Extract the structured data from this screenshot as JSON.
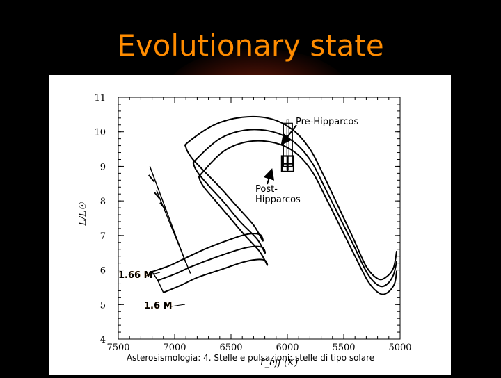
{
  "slide": {
    "title": "Evolutionary state",
    "footer": "Asterosismologia: 4. Stelle e pulsazioni: stelle di tipo solare"
  },
  "colors": {
    "title": "#ff8c00",
    "background": "#000000",
    "panel": "#ffffff"
  },
  "chart_data": {
    "type": "line",
    "title": "",
    "xlabel": "T_eff (K)",
    "ylabel": "L/L☉",
    "xlim": [
      7500,
      5000
    ],
    "x_reversed": true,
    "ylim": [
      4,
      11
    ],
    "x_ticks": [
      "7500",
      "7000",
      "6500",
      "6000",
      "5500",
      "5000"
    ],
    "y_ticks": [
      "4",
      "5",
      "6",
      "7",
      "8",
      "9",
      "10",
      "11"
    ],
    "series": [
      {
        "name": "1.66 M",
        "x": [
          7200,
          7050,
          6900,
          6700,
          6450,
          6330,
          6240,
          6220,
          6300,
          6450,
          6600,
          6750,
          6850,
          6900,
          6880,
          6650,
          6400,
          6150,
          5950,
          5800,
          5680,
          5550,
          5420,
          5300,
          5200,
          5130,
          5060,
          5030
        ],
        "y": [
          5.95,
          6.12,
          6.35,
          6.65,
          6.95,
          7.05,
          7.02,
          6.85,
          7.3,
          7.85,
          8.4,
          8.9,
          9.25,
          9.55,
          9.7,
          10.2,
          10.42,
          10.38,
          10.05,
          9.5,
          8.75,
          7.85,
          6.95,
          6.1,
          5.75,
          5.78,
          6.05,
          6.55
        ]
      },
      {
        "name": "",
        "x": [
          7150,
          7000,
          6850,
          6650,
          6420,
          6300,
          6220,
          6200,
          6270,
          6420,
          6560,
          6700,
          6790,
          6830,
          6810,
          6600,
          6370,
          6130,
          5940,
          5790,
          5670,
          5540,
          5410,
          5290,
          5190,
          5120,
          5060,
          5030
        ],
        "y": [
          5.7,
          5.88,
          6.1,
          6.35,
          6.6,
          6.68,
          6.65,
          6.5,
          6.9,
          7.4,
          7.95,
          8.45,
          8.8,
          9.05,
          9.2,
          9.8,
          10.05,
          10.0,
          9.7,
          9.15,
          8.4,
          7.55,
          6.7,
          5.9,
          5.55,
          5.58,
          5.85,
          6.25
        ]
      },
      {
        "name": "1.6 M",
        "x": [
          7100,
          6950,
          6800,
          6600,
          6400,
          6280,
          6200,
          6180,
          6250,
          6390,
          6520,
          6650,
          6740,
          6780,
          6760,
          6560,
          6340,
          6110,
          5930,
          5780,
          5660,
          5530,
          5400,
          5280,
          5180,
          5110,
          5050,
          5030
        ],
        "y": [
          5.35,
          5.55,
          5.78,
          6.0,
          6.22,
          6.3,
          6.28,
          6.15,
          6.55,
          7.05,
          7.55,
          8.05,
          8.4,
          8.65,
          8.8,
          9.45,
          9.72,
          9.68,
          9.4,
          8.85,
          8.1,
          7.25,
          6.4,
          5.65,
          5.32,
          5.35,
          5.6,
          5.98
        ]
      }
    ],
    "annotations": [
      {
        "text": "Pre-Hipparcos",
        "box_x": [
          6035,
          5955
        ],
        "box_y": [
          9.0,
          10.25
        ]
      },
      {
        "text": "Post-Hipparcos",
        "box_x": [
          6050,
          5945
        ],
        "box_y": [
          8.85,
          9.3
        ]
      }
    ],
    "labels": {
      "pre": "Pre-Hipparcos",
      "post_1": "Post-",
      "post_2": "Hipparcos",
      "mass_a": "1.66 M",
      "mass_b": "1.6 M"
    }
  }
}
